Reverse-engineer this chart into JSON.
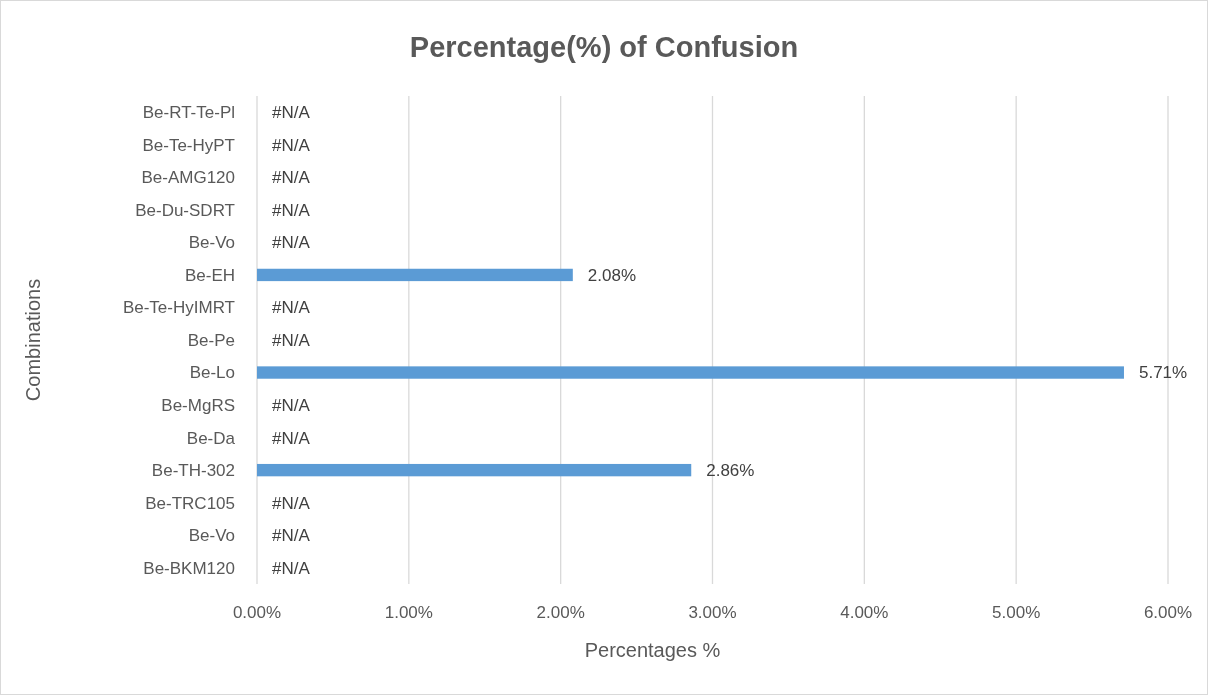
{
  "chart_data": {
    "type": "bar",
    "orientation": "horizontal",
    "title": "Percentage(%) of Confusion",
    "xlabel": "Percentages %",
    "ylabel": "Combinations",
    "categories": [
      "Be-RT-Te-Pl",
      "Be-Te-HyPT",
      "Be-AMG120",
      "Be-Du-SDRT",
      "Be-Vo",
      "Be-EH",
      "Be-Te-HyIMRT",
      "Be-Pe",
      "Be-Lo",
      "Be-MgRS",
      "Be-Da",
      "Be-TH-302",
      "Be-TRC105",
      "Be-Vo",
      "Be-BKM120"
    ],
    "values": [
      null,
      null,
      null,
      null,
      null,
      2.08,
      null,
      null,
      5.71,
      null,
      null,
      2.86,
      null,
      null,
      null
    ],
    "value_labels": [
      "#N/A",
      "#N/A",
      "#N/A",
      "#N/A",
      "#N/A",
      "2.08%",
      "#N/A",
      "#N/A",
      "5.71%",
      "#N/A",
      "#N/A",
      "2.86%",
      "#N/A",
      "#N/A",
      "#N/A"
    ],
    "color": "#5b9bd5",
    "xlim": [
      0,
      6
    ],
    "xticks": [
      {
        "value": 0,
        "label": "0.00%"
      },
      {
        "value": 1,
        "label": "1.00%"
      },
      {
        "value": 2,
        "label": "2.00%"
      },
      {
        "value": 3,
        "label": "3.00%"
      },
      {
        "value": 4,
        "label": "4.00%"
      },
      {
        "value": 5,
        "label": "5.00%"
      },
      {
        "value": 6,
        "label": "6.00%"
      }
    ],
    "grid": "x"
  }
}
